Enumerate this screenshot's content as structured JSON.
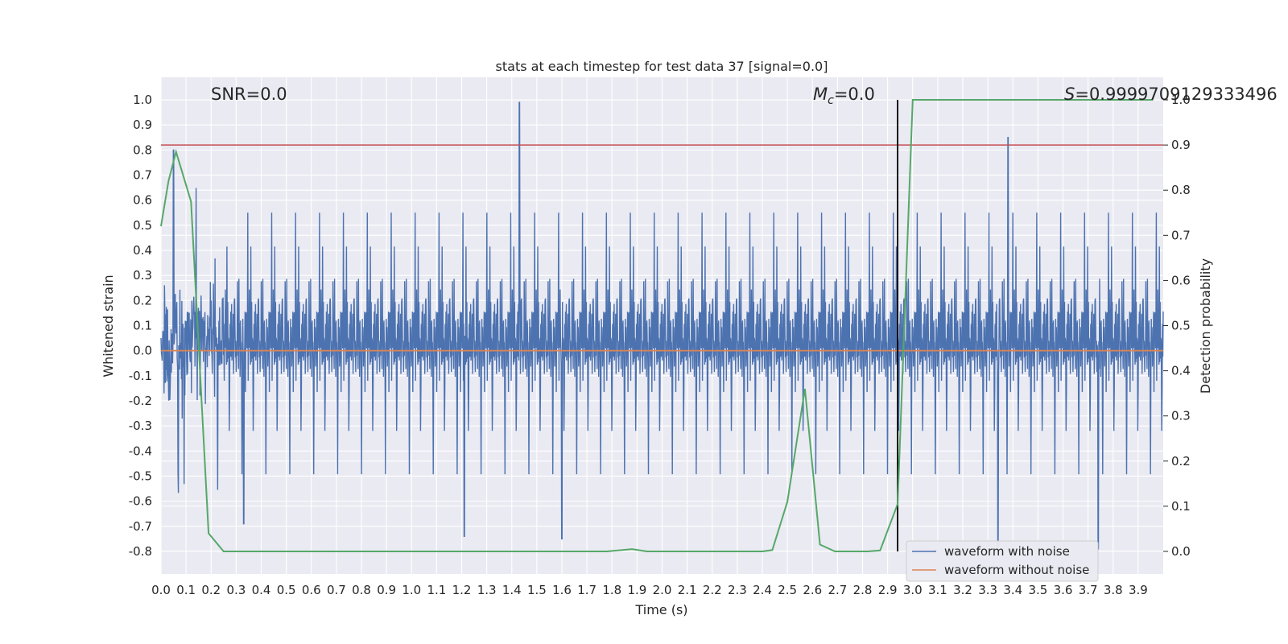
{
  "chart_data": {
    "type": "line",
    "title": "stats at each timestep for test data 37 [signal=0.0]",
    "xlabel": "Time (s)",
    "ylabel": "Whitened strain",
    "ylabel_right": "Detection probability",
    "xlim": [
      0.0,
      4.0
    ],
    "ylim": [
      -0.89,
      1.09
    ],
    "ylim_right": [
      -0.05,
      1.05
    ],
    "x_ticks": [
      0.0,
      0.1,
      0.2,
      0.3,
      0.4,
      0.5,
      0.6,
      0.7,
      0.8,
      0.9,
      1.0,
      1.1,
      1.2,
      1.3,
      1.4,
      1.5,
      1.6,
      1.7,
      1.8,
      1.9,
      2.0,
      2.1,
      2.2,
      2.3,
      2.4,
      2.5,
      2.6,
      2.7,
      2.8,
      2.9,
      3.0,
      3.1,
      3.2,
      3.3,
      3.4,
      3.5,
      3.6,
      3.7,
      3.8,
      3.9
    ],
    "y_ticks": [
      1.0,
      0.9,
      0.8,
      0.7,
      0.6,
      0.5,
      0.4,
      0.3,
      0.2,
      0.1,
      0.0,
      -0.1,
      -0.2,
      -0.3,
      -0.4,
      -0.5,
      -0.6,
      -0.7,
      -0.8
    ],
    "y_ticks_right": [
      1.0,
      0.9,
      0.8,
      0.7,
      0.6,
      0.5,
      0.4,
      0.3,
      0.2,
      0.1,
      0.0
    ],
    "grid": true,
    "legend_position": "bottom-right",
    "annotations": {
      "snr": "SNR=0.0",
      "mc_symbol": "M",
      "mc_subscript": "c",
      "mc_value": "=0.0",
      "s_symbol": "S",
      "s_value": "=0.9999709129333496"
    },
    "series": [
      {
        "name": "waveform with noise",
        "color": "#4c72b0",
        "axis": "left",
        "description": "dense noise samples, roughly within -0.8..1.0",
        "peaks": [
          {
            "x": 0.05,
            "y": 0.8
          },
          {
            "x": 1.43,
            "y": 1.0
          },
          {
            "x": 3.38,
            "y": 0.85
          },
          {
            "x": 3.34,
            "y": -0.78
          },
          {
            "x": 3.74,
            "y": -0.79
          },
          {
            "x": 1.21,
            "y": -0.74
          },
          {
            "x": 0.33,
            "y": -0.69
          },
          {
            "x": 1.6,
            "y": -0.75
          }
        ]
      },
      {
        "name": "waveform without noise",
        "color": "#dd8452",
        "axis": "left",
        "x": [
          0.0,
          4.0
        ],
        "y": [
          0.0,
          0.0
        ]
      },
      {
        "name": "",
        "color": "#55a868",
        "axis": "right",
        "x": [
          0.0,
          0.03,
          0.06,
          0.12,
          0.19,
          0.25,
          0.5,
          1.0,
          1.5,
          1.78,
          1.88,
          1.94,
          2.2,
          2.4,
          2.44,
          2.5,
          2.57,
          2.63,
          2.69,
          2.82,
          2.87,
          2.94,
          3.0,
          3.96
        ],
        "y": [
          0.72,
          0.82,
          0.885,
          0.775,
          0.04,
          0.0,
          0.0,
          0.0,
          0.0,
          0.0,
          0.005,
          0.0,
          0.0,
          0.0,
          0.003,
          0.11,
          0.36,
          0.015,
          0.0,
          0.0,
          0.002,
          0.105,
          1.0,
          1.0
        ]
      }
    ],
    "reference_lines": [
      {
        "type": "horizontal",
        "axis": "right",
        "value": 0.9,
        "color": "#c44e52"
      },
      {
        "type": "vertical",
        "value": 2.94,
        "y_range": [
          -0.8,
          1.0
        ],
        "color": "#000000"
      }
    ]
  }
}
